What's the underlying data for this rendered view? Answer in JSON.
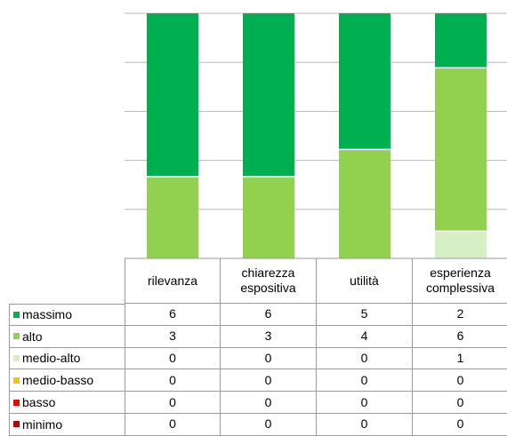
{
  "chart_data": {
    "type": "stacked_bar",
    "categories": [
      "rilevanza",
      "chiarezza espositiva",
      "utilità",
      "esperienza complessiva"
    ],
    "series": [
      {
        "name": "massimo",
        "color": "#00b050",
        "values": [
          6,
          6,
          5,
          2
        ]
      },
      {
        "name": "alto",
        "color": "#92d050",
        "values": [
          3,
          3,
          4,
          6
        ]
      },
      {
        "name": "medio-alto",
        "color": "#d6efc4",
        "values": [
          0,
          0,
          0,
          1
        ]
      },
      {
        "name": "medio-basso",
        "color": "#ffc000",
        "values": [
          0,
          0,
          0,
          0
        ]
      },
      {
        "name": "basso",
        "color": "#ff0000",
        "values": [
          0,
          0,
          0,
          0
        ]
      },
      {
        "name": "minimo",
        "color": "#c00000",
        "values": [
          0,
          0,
          0,
          0
        ]
      }
    ],
    "ylim": [
      0,
      9
    ],
    "yticks": [
      0,
      1.8,
      3.6,
      5.4,
      7.2,
      9
    ],
    "grid": true
  }
}
